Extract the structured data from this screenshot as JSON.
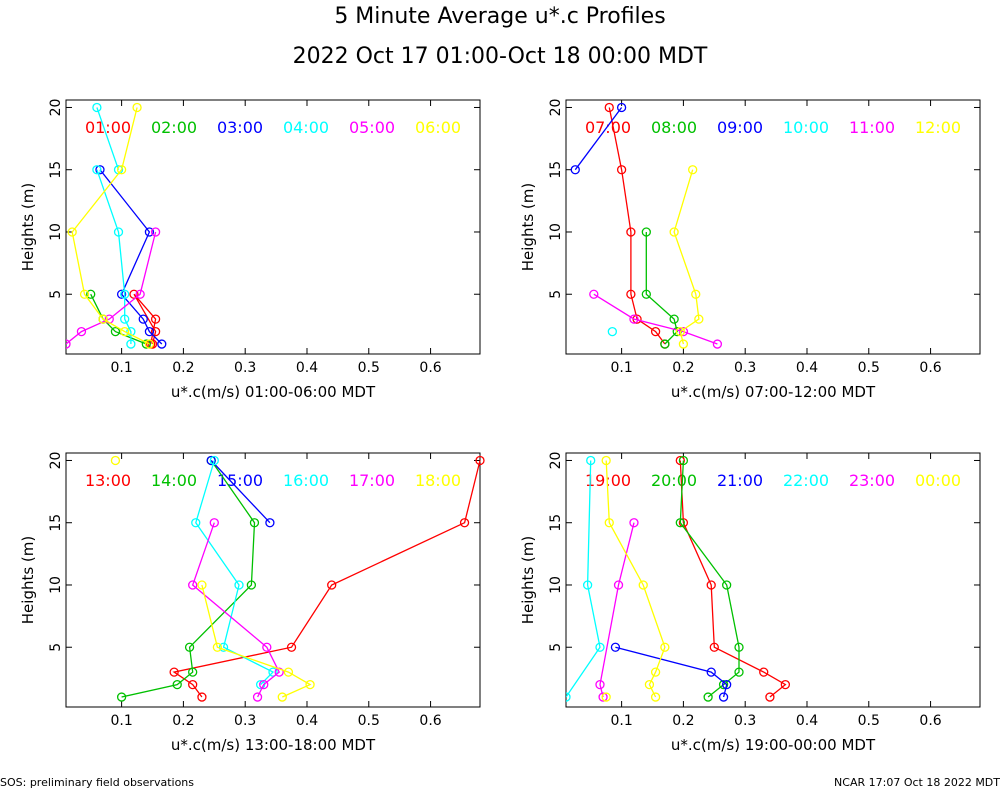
{
  "title": "5 Minute Average u*.c Profiles",
  "subtitle": "2022 Oct 17 01:00-Oct 18 00:00 MDT",
  "footer": {
    "left": "SOS: preliminary field observations",
    "right": "NCAR 17:07 Oct 18 2022 MDT"
  },
  "chart_data": [
    {
      "type": "line",
      "xlabel": "u*.c(m/s) 01:00-06:00 MDT",
      "ylabel": "Heights (m)",
      "xlim": [
        0.01,
        0.68
      ],
      "ylim": [
        0.2,
        20.6
      ],
      "xticks": [
        "0.1",
        "0.2",
        "0.3",
        "0.4",
        "0.5",
        "0.6"
      ],
      "yticks": [
        "5",
        "10",
        "15",
        "20"
      ],
      "series": [
        {
          "name": "01:00",
          "color": "#ff0000",
          "x": [
            0.15,
            0.155,
            0.12,
            0.155,
            0.147
          ],
          "y": [
            1,
            2,
            5,
            3,
            1
          ]
        },
        {
          "name": "02:00",
          "color": "#00c000",
          "x": [
            0.14,
            0.09,
            0.07,
            0.05
          ],
          "y": [
            1,
            2,
            3,
            5
          ]
        },
        {
          "name": "03:00",
          "color": "#0000ff",
          "x": [
            0.165,
            0.145,
            0.135,
            0.1,
            0.145,
            0.065
          ],
          "y": [
            1,
            2,
            3,
            5,
            10,
            15
          ]
        },
        {
          "name": "04:00",
          "color": "#00ffff",
          "x": [
            0.115,
            0.115,
            0.105,
            0.105,
            0.095,
            0.06
          ],
          "y": [
            1,
            2,
            3,
            5,
            10,
            15
          ]
        },
        {
          "name": "04:00",
          "color": "#00ffff",
          "x": [
            0.095,
            0.06
          ],
          "y": [
            15,
            20
          ]
        },
        {
          "name": "05:00",
          "color": "#ff00ff",
          "x": [
            0.01,
            0.035,
            0.08,
            0.13,
            0.155
          ],
          "y": [
            1,
            2,
            3,
            5,
            10
          ]
        },
        {
          "name": "06:00",
          "color": "#ffff00",
          "x": [
            0.145,
            0.105,
            0.07,
            0.04,
            0.02,
            0.1,
            0.125
          ],
          "y": [
            1,
            2,
            3,
            5,
            10,
            15,
            20
          ]
        }
      ]
    },
    {
      "type": "line",
      "xlabel": "u*.c(m/s) 07:00-12:00 MDT",
      "ylabel": "Heights (m)",
      "xlim": [
        0.01,
        0.68
      ],
      "ylim": [
        0.2,
        20.6
      ],
      "xticks": [
        "0.1",
        "0.2",
        "0.3",
        "0.4",
        "0.5",
        "0.6"
      ],
      "yticks": [
        "5",
        "10",
        "15",
        "20"
      ],
      "series": [
        {
          "name": "07:00",
          "color": "#ff0000",
          "x": [
            0.17,
            0.155,
            0.125,
            0.115,
            0.115,
            0.1,
            0.08
          ],
          "y": [
            1,
            2,
            3,
            5,
            10,
            15,
            20
          ]
        },
        {
          "name": "08:00",
          "color": "#00c000",
          "x": [
            0.17,
            0.19,
            0.185,
            0.14,
            0.14
          ],
          "y": [
            1,
            2,
            3,
            5,
            10
          ]
        },
        {
          "name": "09:00",
          "color": "#0000ff",
          "x": [
            0.025,
            0.1
          ],
          "y": [
            15,
            20
          ]
        },
        {
          "name": "10:00",
          "color": "#00ffff",
          "x": [
            0.085
          ],
          "y": [
            2
          ]
        },
        {
          "name": "11:00",
          "color": "#ff00ff",
          "x": [
            0.255,
            0.2,
            0.12,
            0.055
          ],
          "y": [
            1,
            2,
            3,
            5
          ]
        },
        {
          "name": "12:00",
          "color": "#ffff00",
          "x": [
            0.2,
            0.195,
            0.225,
            0.22,
            0.185,
            0.215
          ],
          "y": [
            1,
            2,
            3,
            5,
            10,
            15
          ]
        }
      ]
    },
    {
      "type": "line",
      "xlabel": "u*.c(m/s) 13:00-18:00 MDT",
      "ylabel": "Heights (m)",
      "xlim": [
        0.01,
        0.68
      ],
      "ylim": [
        0.2,
        20.6
      ],
      "xticks": [
        "0.1",
        "0.2",
        "0.3",
        "0.4",
        "0.5",
        "0.6"
      ],
      "yticks": [
        "5",
        "10",
        "15",
        "20"
      ],
      "series": [
        {
          "name": "13:00",
          "color": "#ff0000",
          "x": [
            0.23,
            0.215,
            0.185,
            0.375,
            0.44,
            0.655,
            0.68
          ],
          "y": [
            1,
            2,
            3,
            5,
            10,
            15,
            20
          ]
        },
        {
          "name": "14:00",
          "color": "#00c000",
          "x": [
            0.1,
            0.19,
            0.215,
            0.21,
            0.31,
            0.315,
            0.245
          ],
          "y": [
            1,
            2,
            3,
            5,
            10,
            15,
            20
          ]
        },
        {
          "name": "15:00",
          "color": "#0000ff",
          "x": [
            0.34,
            0.245
          ],
          "y": [
            15,
            20
          ]
        },
        {
          "name": "16:00",
          "color": "#00ffff",
          "x": [
            0.325,
            0.345,
            0.265,
            0.29,
            0.22,
            0.25
          ],
          "y": [
            2,
            3,
            5,
            10,
            15,
            20
          ]
        },
        {
          "name": "17:00",
          "color": "#ff00ff",
          "x": [
            0.32,
            0.33,
            0.355,
            0.335,
            0.215,
            0.25
          ],
          "y": [
            1,
            2,
            3,
            5,
            10,
            15
          ]
        },
        {
          "name": "18:00",
          "color": "#ffff00",
          "x": [
            0.36,
            0.405,
            0.37,
            0.255,
            0.23
          ],
          "y": [
            1,
            2,
            3,
            5,
            10
          ]
        },
        {
          "name": "18:00",
          "color": "#ffff00",
          "x": [
            0.09
          ],
          "y": [
            20
          ]
        }
      ]
    },
    {
      "type": "line",
      "xlabel": "u*.c(m/s) 19:00-00:00 MDT",
      "ylabel": "Heights (m)",
      "xlim": [
        0.01,
        0.68
      ],
      "ylim": [
        0.2,
        20.6
      ],
      "xticks": [
        "0.1",
        "0.2",
        "0.3",
        "0.4",
        "0.5",
        "0.6"
      ],
      "yticks": [
        "5",
        "10",
        "15",
        "20"
      ],
      "series": [
        {
          "name": "19:00",
          "color": "#ff0000",
          "x": [
            0.34,
            0.365,
            0.33,
            0.25,
            0.245,
            0.2,
            0.195
          ],
          "y": [
            1,
            2,
            3,
            5,
            10,
            15,
            20
          ]
        },
        {
          "name": "20:00",
          "color": "#00c000",
          "x": [
            0.24,
            0.265,
            0.29,
            0.29,
            0.27,
            0.195,
            0.2
          ],
          "y": [
            1,
            2,
            3,
            5,
            10,
            15,
            20
          ]
        },
        {
          "name": "21:00",
          "color": "#0000ff",
          "x": [
            0.265,
            0.27,
            0.245,
            0.09
          ],
          "y": [
            1,
            2,
            3,
            5
          ]
        },
        {
          "name": "22:00",
          "color": "#00ffff",
          "x": [
            0.01,
            0.065,
            0.045,
            0.05
          ],
          "y": [
            1,
            5,
            10,
            20
          ]
        },
        {
          "name": "23:00",
          "color": "#ff00ff",
          "x": [
            0.07,
            0.065,
            0.095,
            0.12
          ],
          "y": [
            1,
            2,
            10,
            15
          ]
        },
        {
          "name": "00:00",
          "color": "#ffff00",
          "x": [
            0.155,
            0.145,
            0.155,
            0.17,
            0.135,
            0.08,
            0.075
          ],
          "y": [
            1,
            2,
            3,
            5,
            10,
            15,
            20
          ]
        },
        {
          "name": "00:00",
          "color": "#ffff00",
          "x": [
            0.075
          ],
          "y": [
            1
          ]
        }
      ]
    }
  ]
}
